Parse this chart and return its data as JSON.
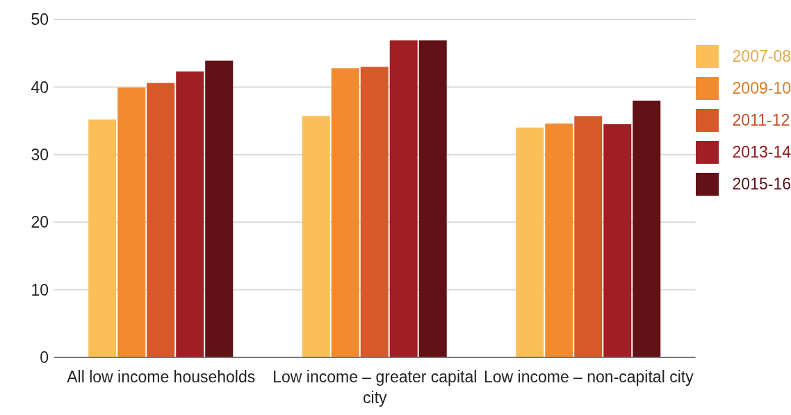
{
  "chart_data": {
    "type": "bar",
    "categories": [
      "All low income households",
      "Low income – greater capital city",
      "Low income – non-capital city"
    ],
    "series": [
      {
        "name": "2007-08",
        "color": "#fbbf58",
        "values": [
          35.2,
          35.7,
          34.0
        ]
      },
      {
        "name": "2009-10",
        "color": "#f28b30",
        "values": [
          39.9,
          42.8,
          34.6
        ]
      },
      {
        "name": "2011-12",
        "color": "#d65a29",
        "values": [
          40.6,
          43.0,
          35.7
        ]
      },
      {
        "name": "2013-14",
        "color": "#a01f24",
        "values": [
          42.3,
          46.9,
          34.5
        ]
      },
      {
        "name": "2015-16",
        "color": "#621116",
        "values": [
          43.9,
          46.9,
          38.0
        ]
      }
    ],
    "ylim": [
      0,
      50
    ],
    "yticks": [
      0,
      10,
      20,
      30,
      40,
      50
    ],
    "grid": "y",
    "legend": "right"
  }
}
